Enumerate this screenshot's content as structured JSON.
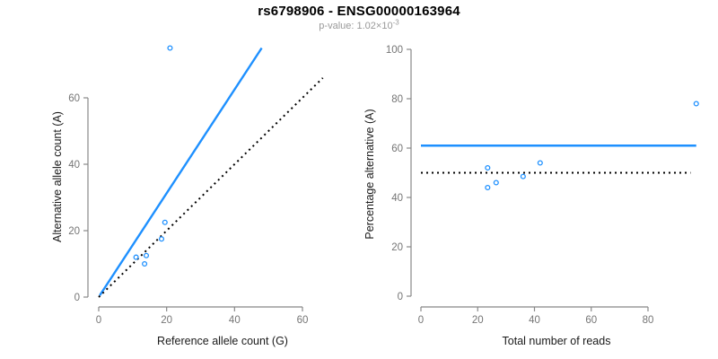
{
  "header": {
    "title": "rs6798906 - ENSG00000163964",
    "subtitle_main": "p-value: 1.02×10",
    "subtitle_exponent": "-3"
  },
  "colors": {
    "accent_blue": "#1E90FF",
    "line_black": "#000000",
    "axis": "#888888",
    "tick_label": "#757575",
    "axis_title": "#1a1a1a",
    "title": "#000000",
    "subtitle": "#999999"
  },
  "chart_data": [
    {
      "type": "scatter",
      "name": "allele-counts",
      "title": "",
      "xlabel": "Reference allele count (G)",
      "ylabel": "Alternative allele count (A)",
      "xlim": [
        0,
        66
      ],
      "ylim": [
        0,
        76
      ],
      "xticks": [
        0,
        20,
        40,
        60
      ],
      "yticks": [
        0,
        20,
        40,
        60
      ],
      "grid": false,
      "points": [
        {
          "x": 21,
          "y": 75
        },
        {
          "x": 19.5,
          "y": 22.5
        },
        {
          "x": 18.5,
          "y": 17.5
        },
        {
          "x": 11,
          "y": 12
        },
        {
          "x": 14,
          "y": 12.5
        },
        {
          "x": 13.5,
          "y": 10
        }
      ],
      "lines": [
        {
          "name": "fitted-ratio-line",
          "style": "solid",
          "color": "#1E90FF",
          "x1": 0.3,
          "y1": 0.5,
          "x2": 48,
          "y2": 75
        },
        {
          "name": "identity-line",
          "style": "dotted",
          "color": "#000000",
          "x1": 0,
          "y1": 0,
          "x2": 66,
          "y2": 66
        }
      ]
    },
    {
      "type": "scatter",
      "name": "percentage-vs-reads",
      "title": "",
      "xlabel": "Total number of reads",
      "ylabel": "Percentage alternative (A)",
      "xlim": [
        0,
        97
      ],
      "ylim": [
        0,
        100
      ],
      "xticks": [
        0,
        20,
        40,
        60,
        80
      ],
      "yticks": [
        0,
        20,
        40,
        60,
        80,
        100
      ],
      "grid": false,
      "points": [
        {
          "x": 97,
          "y": 78
        },
        {
          "x": 42,
          "y": 54
        },
        {
          "x": 36,
          "y": 48.5
        },
        {
          "x": 23.5,
          "y": 52
        },
        {
          "x": 26.5,
          "y": 46
        },
        {
          "x": 23.5,
          "y": 44
        }
      ],
      "lines": [
        {
          "name": "fitted-percentage-line",
          "style": "solid",
          "color": "#1E90FF",
          "x1": 0,
          "y1": 61,
          "x2": 97,
          "y2": 61
        },
        {
          "name": "expected-percentage-line",
          "style": "dotted",
          "color": "#000000",
          "x1": 0,
          "y1": 50,
          "x2": 95,
          "y2": 50
        }
      ]
    }
  ]
}
